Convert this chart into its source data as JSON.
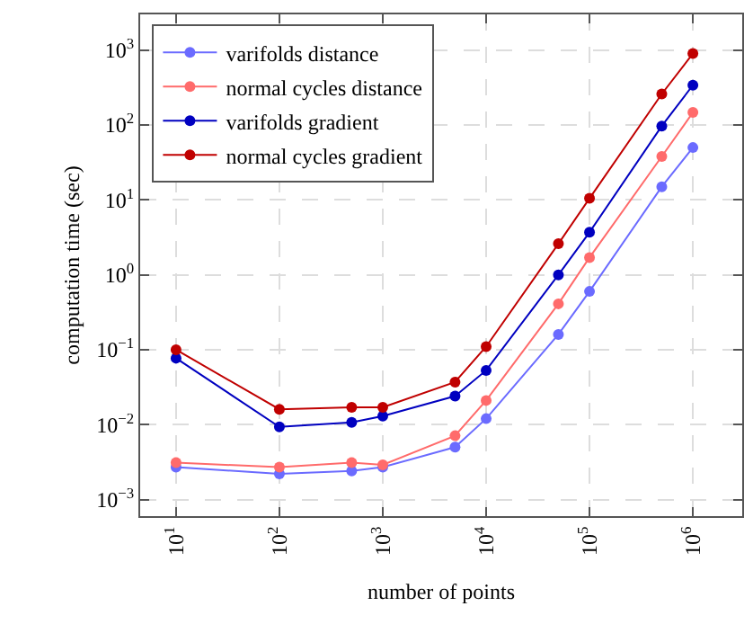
{
  "chart_data": {
    "type": "line",
    "xlabel": "number of points",
    "ylabel": "computation time (sec)",
    "log": "xy",
    "grid": true,
    "legend": "top left",
    "marker": "circle",
    "line_style": "solid",
    "x": [
      10,
      100,
      500,
      1000,
      5000,
      10000,
      50000,
      100000,
      500000,
      1000000
    ],
    "xlim": [
      4.5,
      3000000
    ],
    "ylim": [
      0.0006,
      3000
    ],
    "xticks": [
      {
        "value": 10,
        "label": "10$^{1}$"
      },
      {
        "value": 100,
        "label": "10$^{2}$"
      },
      {
        "value": 1000,
        "label": "10$^{3}$"
      },
      {
        "value": 10000,
        "label": "10$^{4}$"
      },
      {
        "value": 100000,
        "label": "10$^{5}$"
      },
      {
        "value": 1000000,
        "label": "10$^{6}$"
      }
    ],
    "yticks": [
      {
        "value": 0.001,
        "label": "10$^{−3}$"
      },
      {
        "value": 0.01,
        "label": "10$^{−2}$"
      },
      {
        "value": 0.1,
        "label": "10$^{−1}$"
      },
      {
        "value": 1,
        "label": "10$^{0}$"
      },
      {
        "value": 10,
        "label": "10$^{1}$"
      },
      {
        "value": 100,
        "label": "10$^{2}$"
      },
      {
        "value": 1000,
        "label": "10$^{3}$"
      }
    ],
    "series": [
      {
        "name": "varifolds distance",
        "color": "#6b6bff",
        "values": [
          0.0027,
          0.0022,
          0.0024,
          0.0027,
          0.005,
          0.012,
          0.16,
          0.6,
          15,
          50
        ]
      },
      {
        "name": "normal cycles distance",
        "color": "#ff6b6b",
        "values": [
          0.0031,
          0.0027,
          0.0031,
          0.0029,
          0.0071,
          0.021,
          0.41,
          1.7,
          38,
          147
        ]
      },
      {
        "name": "varifolds gradient",
        "color": "#0000c0",
        "values": [
          0.077,
          0.0093,
          0.0107,
          0.013,
          0.024,
          0.053,
          1.0,
          3.7,
          97,
          340
        ]
      },
      {
        "name": "normal cycles gradient",
        "color": "#c00000",
        "values": [
          0.1,
          0.016,
          0.017,
          0.017,
          0.037,
          0.11,
          2.6,
          10.5,
          260,
          900
        ]
      }
    ]
  }
}
